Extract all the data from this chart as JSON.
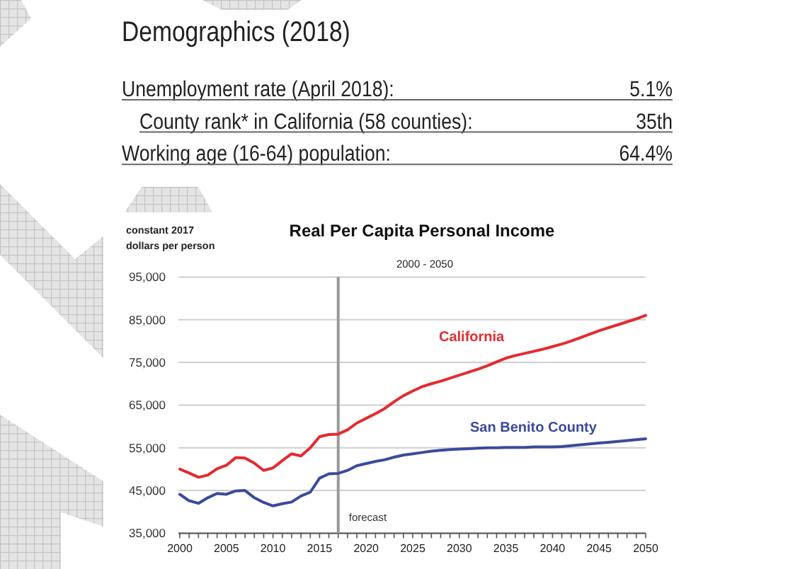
{
  "chart_data": [
    {
      "type": "other",
      "title": "Demographics (2018)",
      "annotations": [
        "Unemployment rate (April 2018):",
        "5.1%",
        "County rank* in California (58 counties):",
        "35th",
        "Working age (16-64) population:",
        "64.4%"
      ]
    },
    {
      "type": "line",
      "title": "Real Per Capita Personal Income",
      "subtitle": "2000 - 2050",
      "ylabel": "constant 2017 dollars per person",
      "x": [
        2000,
        2001,
        2002,
        2003,
        2004,
        2005,
        2006,
        2007,
        2008,
        2009,
        2010,
        2011,
        2012,
        2013,
        2014,
        2015,
        2016,
        2017,
        2018,
        2019,
        2020,
        2021,
        2022,
        2023,
        2024,
        2025,
        2026,
        2027,
        2028,
        2029,
        2030,
        2031,
        2032,
        2033,
        2034,
        2035,
        2036,
        2037,
        2038,
        2039,
        2040,
        2041,
        2042,
        2043,
        2044,
        2045,
        2046,
        2047,
        2048,
        2049,
        2050
      ],
      "series": [
        {
          "name": "California",
          "color": "#e32b2f",
          "values": [
            50000,
            49100,
            48100,
            48600,
            50100,
            50900,
            52700,
            52600,
            51400,
            49700,
            50300,
            52000,
            53600,
            53100,
            55000,
            57600,
            58100,
            58200,
            59200,
            60800,
            61900,
            63000,
            64200,
            65800,
            67200,
            68300,
            69300,
            70000,
            70600,
            71300,
            72000,
            72700,
            73400,
            74200,
            75100,
            76000,
            76600,
            77100,
            77600,
            78100,
            78700,
            79300,
            80000,
            80800,
            81600,
            82400,
            83100,
            83800,
            84500,
            85200,
            86000
          ]
        },
        {
          "name": "San Benito County",
          "color": "#3b4a9c",
          "values": [
            44100,
            42600,
            42000,
            43300,
            44300,
            44100,
            44900,
            45000,
            43300,
            42200,
            41400,
            41900,
            42300,
            43700,
            44600,
            47900,
            48900,
            49000,
            49700,
            50800,
            51300,
            51800,
            52200,
            52800,
            53300,
            53600,
            53900,
            54200,
            54400,
            54600,
            54700,
            54800,
            54900,
            55000,
            55000,
            55100,
            55100,
            55100,
            55200,
            55200,
            55200,
            55300,
            55500,
            55700,
            55900,
            56100,
            56300,
            56500,
            56700,
            56900,
            57100
          ]
        }
      ],
      "xlim": [
        2000,
        2050
      ],
      "ylim": [
        35000,
        95000
      ],
      "xticks": [
        2000,
        {
          "value": 2001,
          "label": null
        },
        {
          "value": 2002,
          "label": null
        },
        {
          "value": 2003,
          "label": null
        },
        {
          "value": 2004,
          "label": null
        },
        2005,
        {
          "value": 2006,
          "label": null
        },
        {
          "value": 2007,
          "label": null
        },
        {
          "value": 2008,
          "label": null
        },
        {
          "value": 2009,
          "label": null
        },
        2010,
        {
          "value": 2011,
          "label": null
        },
        {
          "value": 2012,
          "label": null
        },
        {
          "value": 2013,
          "label": null
        },
        {
          "value": 2014,
          "label": null
        },
        2015,
        {
          "value": 2016,
          "label": null
        },
        {
          "value": 2017,
          "label": null
        },
        {
          "value": 2018,
          "label": null
        },
        {
          "value": 2019,
          "label": null
        },
        2020,
        {
          "value": 2021,
          "label": null
        },
        {
          "value": 2022,
          "label": null
        },
        {
          "value": 2023,
          "label": null
        },
        {
          "value": 2024,
          "label": null
        },
        2025,
        {
          "value": 2026,
          "label": null
        },
        {
          "value": 2027,
          "label": null
        },
        {
          "value": 2028,
          "label": null
        },
        {
          "value": 2029,
          "label": null
        },
        2030,
        {
          "value": 2031,
          "label": null
        },
        {
          "value": 2032,
          "label": null
        },
        {
          "value": 2033,
          "label": null
        },
        {
          "value": 2034,
          "label": null
        },
        2035,
        {
          "value": 2036,
          "label": null
        },
        {
          "value": 2037,
          "label": null
        },
        {
          "value": 2038,
          "label": null
        },
        {
          "value": 2039,
          "label": null
        },
        2040,
        {
          "value": 2041,
          "label": null
        },
        {
          "value": 2042,
          "label": null
        },
        {
          "value": 2043,
          "label": null
        },
        {
          "value": 2044,
          "label": null
        },
        2045,
        {
          "value": 2046,
          "label": null
        },
        {
          "value": 2047,
          "label": null
        },
        {
          "value": 2048,
          "label": null
        },
        {
          "value": 2049,
          "label": null
        },
        2050
      ],
      "yticks": [
        {
          "value": 35000,
          "label": "35,000"
        },
        {
          "value": 45000,
          "label": "45,000"
        },
        {
          "value": 55000,
          "label": "55,000"
        },
        {
          "value": 65000,
          "label": "65,000"
        },
        {
          "value": 75000,
          "label": "75,000"
        },
        {
          "value": 85000,
          "label": "85,000"
        },
        {
          "value": 95000,
          "label": "95,000"
        }
      ],
      "grid": "y",
      "ref_lines": [
        {
          "axis": "x",
          "value": 2017,
          "label": "forecast",
          "color": "#999999"
        }
      ]
    }
  ]
}
